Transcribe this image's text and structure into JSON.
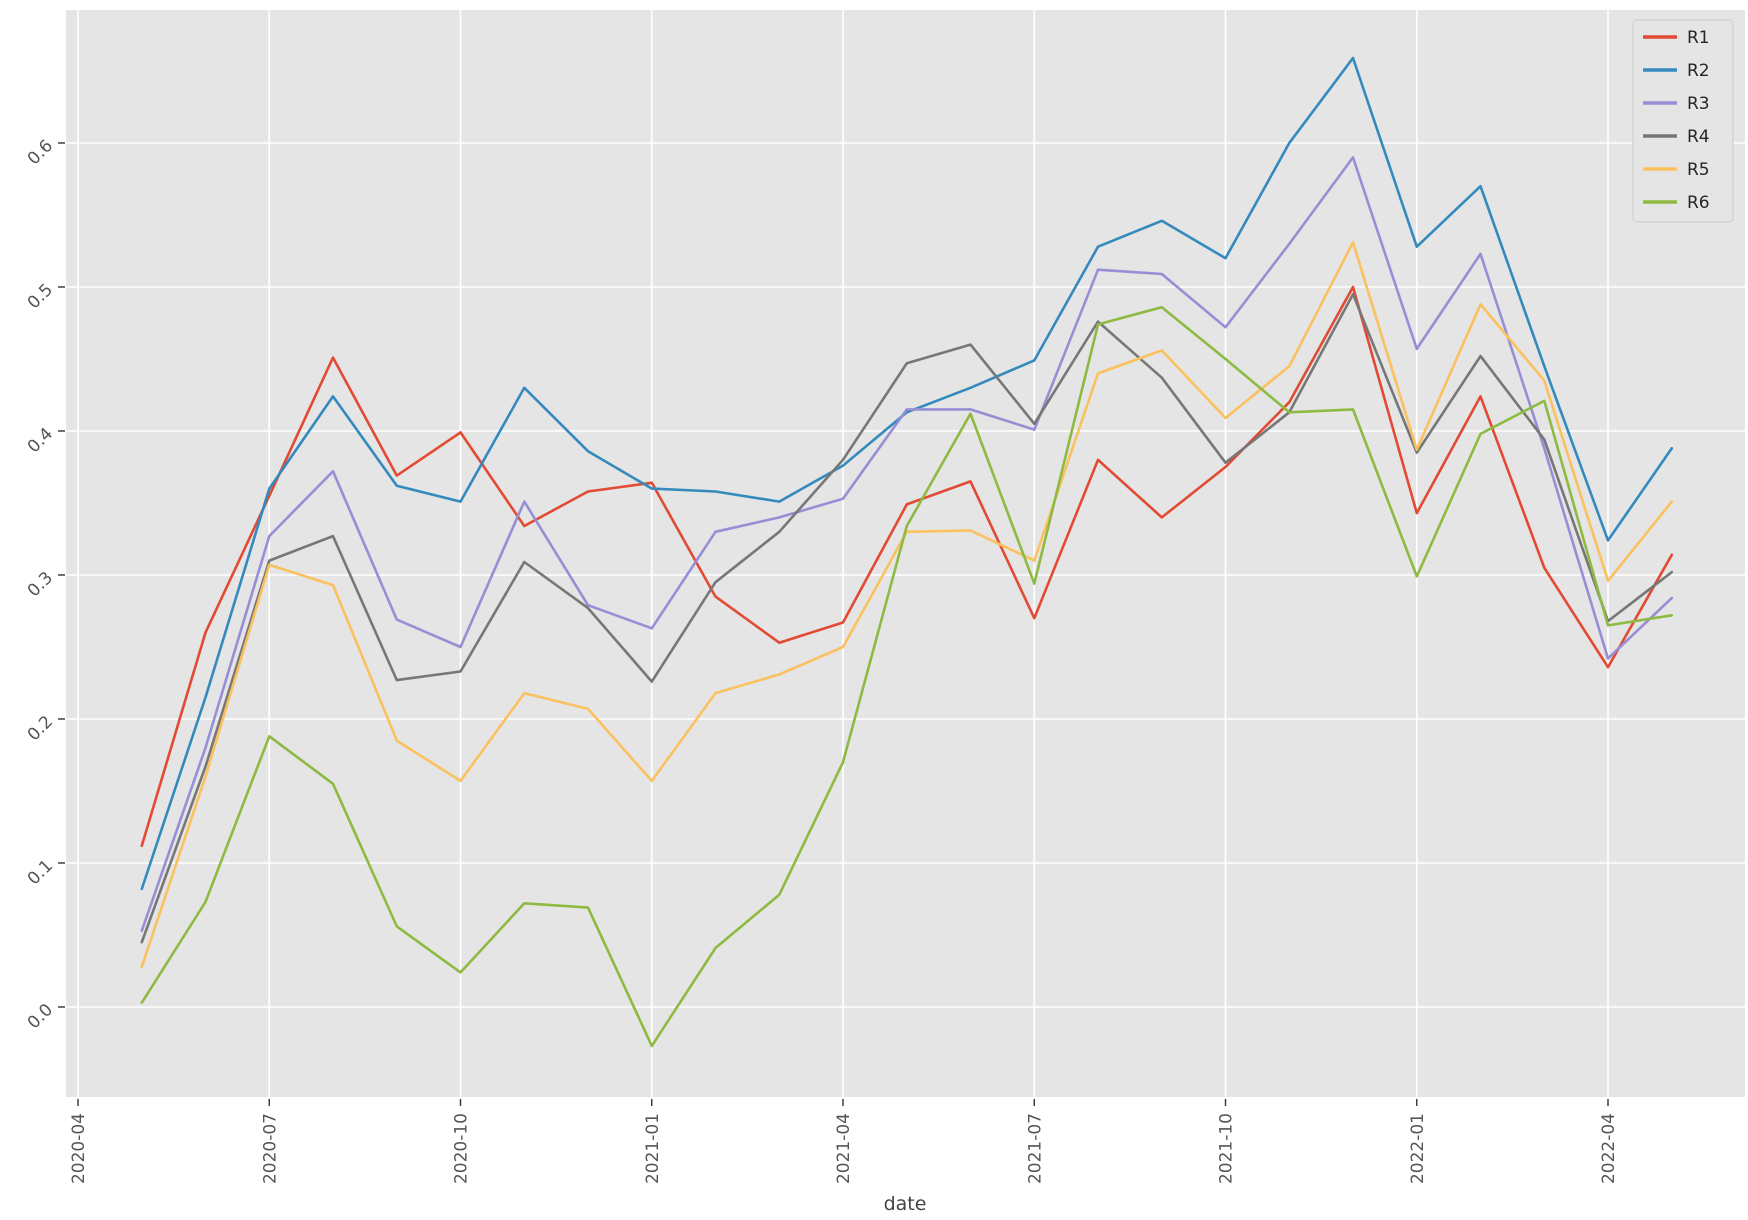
{
  "chart_data": {
    "type": "line",
    "title": "",
    "xlabel": "date",
    "ylabel": "",
    "grid": true,
    "legend_position": "upper-right",
    "plot_background": "#e5e5e5",
    "grid_color": "#ffffff",
    "tick_color": "#333333",
    "tick_label_color": "#555555",
    "axis_label_color": "#444444",
    "legend_text_color": "#262626",
    "legend_border_color": "#cccccc",
    "x_tick_labels": [
      "2020-04",
      "2020-07",
      "2020-10",
      "2021-01",
      "2021-04",
      "2021-07",
      "2021-10",
      "2022-01",
      "2022-04"
    ],
    "y_tick_labels": [
      "0.0",
      "0.1",
      "0.2",
      "0.3",
      "0.4",
      "0.5",
      "0.6"
    ],
    "ylim": [
      -0.0625,
      0.6925
    ],
    "x": [
      "2020-05",
      "2020-06",
      "2020-07",
      "2020-08",
      "2020-09",
      "2020-10",
      "2020-11",
      "2020-12",
      "2021-01",
      "2021-02",
      "2021-03",
      "2021-04",
      "2021-05",
      "2021-06",
      "2021-07",
      "2021-08",
      "2021-09",
      "2021-10",
      "2021-11",
      "2021-12",
      "2022-01",
      "2022-02",
      "2022-03",
      "2022-04",
      "2022-05"
    ],
    "series": [
      {
        "name": "R1",
        "color": "#E24A33",
        "values": [
          0.112,
          0.26,
          0.355,
          0.451,
          0.369,
          0.399,
          0.334,
          0.358,
          0.364,
          0.285,
          0.253,
          0.267,
          0.349,
          0.365,
          0.27,
          0.38,
          0.34,
          0.375,
          0.42,
          0.5,
          0.343,
          0.424,
          0.305,
          0.236,
          0.314
        ]
      },
      {
        "name": "R2",
        "color": "#348ABD",
        "values": [
          0.082,
          0.215,
          0.36,
          0.424,
          0.362,
          0.351,
          0.43,
          0.386,
          0.36,
          0.358,
          0.351,
          0.376,
          0.413,
          0.43,
          0.449,
          0.528,
          0.546,
          0.52,
          0.6,
          0.659,
          0.528,
          0.57,
          0.445,
          0.324,
          0.388
        ]
      },
      {
        "name": "R3",
        "color": "#988ED5",
        "values": [
          0.053,
          0.18,
          0.327,
          0.372,
          0.269,
          0.25,
          0.351,
          0.279,
          0.263,
          0.33,
          0.34,
          0.353,
          0.415,
          0.415,
          0.401,
          0.512,
          0.509,
          0.472,
          0.53,
          0.59,
          0.457,
          0.523,
          0.388,
          0.242,
          0.284
        ]
      },
      {
        "name": "R4",
        "color": "#777777",
        "values": [
          0.045,
          0.167,
          0.31,
          0.327,
          0.227,
          0.233,
          0.309,
          0.277,
          0.226,
          0.295,
          0.33,
          0.38,
          0.447,
          0.46,
          0.405,
          0.476,
          0.437,
          0.378,
          0.413,
          0.495,
          0.385,
          0.452,
          0.394,
          0.268,
          0.302
        ]
      },
      {
        "name": "R5",
        "color": "#FBC15E",
        "values": [
          0.028,
          0.16,
          0.307,
          0.293,
          0.185,
          0.157,
          0.218,
          0.207,
          0.157,
          0.218,
          0.231,
          0.25,
          0.33,
          0.331,
          0.31,
          0.44,
          0.456,
          0.409,
          0.445,
          0.531,
          0.387,
          0.488,
          0.435,
          0.296,
          0.351
        ]
      },
      {
        "name": "R6",
        "color": "#8EBA42",
        "values": [
          0.003,
          0.073,
          0.188,
          0.155,
          0.056,
          0.024,
          0.072,
          0.069,
          -0.027,
          0.041,
          0.078,
          0.17,
          0.334,
          0.412,
          0.294,
          0.474,
          0.486,
          0.45,
          0.413,
          0.415,
          0.299,
          0.398,
          0.421,
          0.265,
          0.272
        ]
      }
    ]
  }
}
